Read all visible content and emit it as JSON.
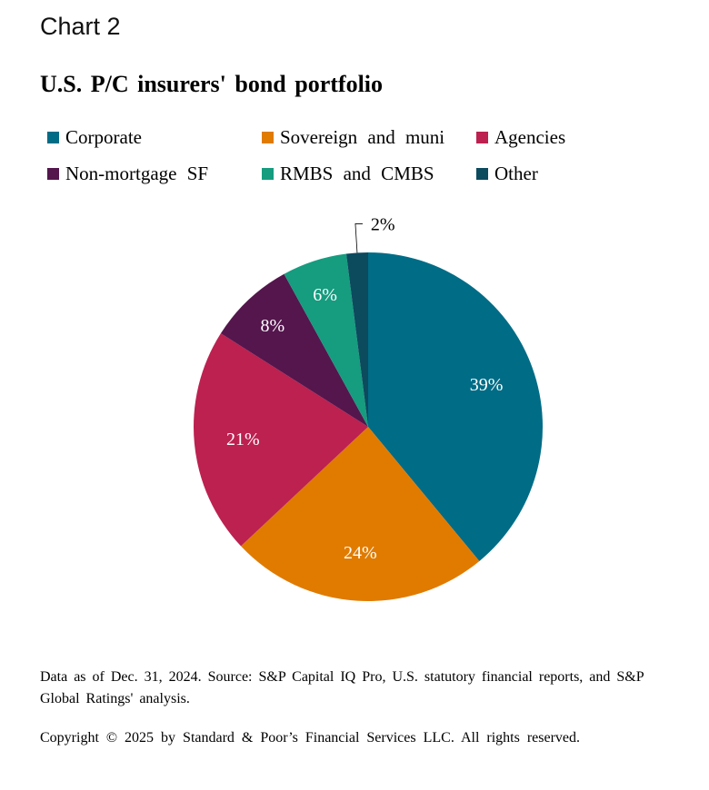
{
  "header": {
    "chart_label": "Chart 2",
    "title": "U.S. P/C insurers'  bond  portfolio"
  },
  "colors": {
    "corporate": "#006c86",
    "sovereign": "#e07b00",
    "agencies": "#bc2150",
    "nonmortgage": "#54164d",
    "rmbs": "#169c7f",
    "other": "#0c4a5e"
  },
  "chart_data": {
    "type": "pie",
    "title": "U.S. P/C insurers' bond portfolio",
    "categories": [
      "Corporate",
      "Sovereign and muni",
      "Agencies",
      "Non-mortgage SF",
      "RMBS and CMBS",
      "Other"
    ],
    "values": [
      39,
      24,
      21,
      8,
      6,
      2
    ],
    "data_labels": [
      "39%",
      "24%",
      "21%",
      "8%",
      "6%",
      "2%"
    ],
    "legend_position": "top",
    "start_angle": "12 o'clock",
    "direction": "clockwise"
  },
  "legend": [
    {
      "label": "Corporate",
      "color_key": "corporate"
    },
    {
      "label": "Sovereign  and  muni",
      "color_key": "sovereign"
    },
    {
      "label": "Agencies",
      "color_key": "agencies"
    },
    {
      "label": "Non-mortgage   SF",
      "color_key": "nonmortgage"
    },
    {
      "label": "RMBS and  CMBS",
      "color_key": "rmbs"
    },
    {
      "label": "Other",
      "color_key": "other"
    }
  ],
  "footer": {
    "source_note": "Data  as  of Dec. 31, 2024.  Source:  S&P Capital  IQ Pro,  U.S. statutory   financial  reports,  and  S&P Global  Ratings'  analysis.",
    "copyright": "Copyright  © 2025  by Standard   & Poor’s  Financial  Services  LLC. All rights  reserved."
  }
}
